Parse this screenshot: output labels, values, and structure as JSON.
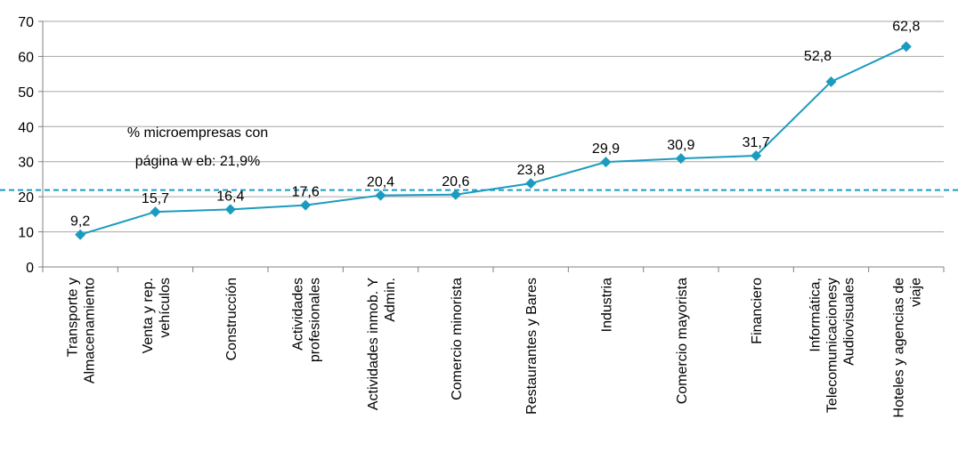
{
  "chart_data": {
    "type": "line",
    "categories": [
      [
        "Transporte y",
        "Almacenamiento"
      ],
      [
        "Venta y rep.",
        "vehículos"
      ],
      [
        "Construcción"
      ],
      [
        "Actividades",
        "profesionales"
      ],
      [
        "Actividades inmob. Y",
        "Admin."
      ],
      [
        "Comercio minorista"
      ],
      [
        "Restaurantes y Bares"
      ],
      [
        "Industria"
      ],
      [
        "Comercio mayorista"
      ],
      [
        "Financiero"
      ],
      [
        "Informática,",
        "Telecomunicacionesy",
        "Audiovisuales"
      ],
      [
        "Hoteles y agencias de",
        "viaje"
      ]
    ],
    "series": [
      {
        "values": [
          9.2,
          15.7,
          16.4,
          17.6,
          20.4,
          20.6,
          23.8,
          29.9,
          30.9,
          31.7,
          52.8,
          62.8
        ],
        "labels": [
          "9,2",
          "15,7",
          "16,4",
          "17,6",
          "20,4",
          "20,6",
          "23,8",
          "29,9",
          "30,9",
          "31,7",
          "52,8",
          "62,8"
        ]
      }
    ],
    "reference_line": {
      "value": 21.9,
      "style": "dashed"
    },
    "annotation": [
      "% microempresas con",
      "página w eb: 21,9%"
    ],
    "ylim": [
      0,
      70
    ],
    "yticks": [
      0,
      10,
      20,
      30,
      40,
      50,
      60,
      70
    ],
    "grid": true,
    "colors": {
      "line": "#1b9bbf",
      "marker": "#1b9bbf",
      "grid": "#a6a6a6",
      "axis": "#808080"
    }
  }
}
